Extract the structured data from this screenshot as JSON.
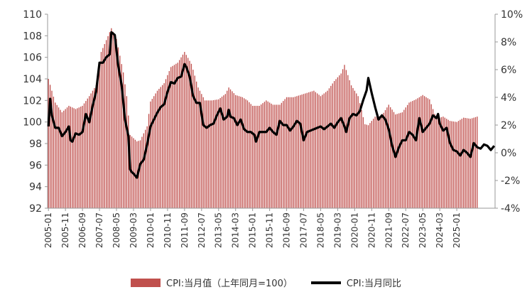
{
  "colors": {
    "bar": "#c0504d",
    "line": "#000000",
    "axis": "#999999"
  },
  "chart_data": {
    "type": "bar",
    "title": "",
    "xlabel": "",
    "ylabel": "",
    "ylim": [
      92,
      110
    ],
    "y2lim": [
      -4,
      10
    ],
    "yticks": [
      92,
      94,
      96,
      98,
      100,
      102,
      104,
      106,
      108,
      110
    ],
    "y2ticks": [
      "-4%",
      "-2%",
      "0%",
      "2%",
      "4%",
      "6%",
      "8%",
      "10%"
    ],
    "y2tick_values": [
      -4,
      -2,
      0,
      2,
      4,
      6,
      8,
      10
    ],
    "x_tick_labels": [
      "2005-01",
      "2005-11",
      "2006-09",
      "2007-07",
      "2008-05",
      "2009-03",
      "2010-01",
      "2010-11",
      "2011-09",
      "2012-07",
      "2013-05",
      "2014-03",
      "2015-01",
      "2015-11",
      "2016-09",
      "2017-07",
      "2018-05",
      "2019-03",
      "2020-01",
      "2020-11",
      "2021-09",
      "2022-07",
      "2023-05",
      "2024-03",
      "2025-01"
    ],
    "legend_position": "bottom",
    "grid": false,
    "series": [
      {
        "name": "CPI:当月值（上年同月=100）",
        "kind": "bar",
        "axis": "left",
        "anchors": [
          [
            0,
            104.0
          ],
          [
            4,
            101.8
          ],
          [
            8,
            100.9
          ],
          [
            12,
            101.5
          ],
          [
            16,
            101.2
          ],
          [
            20,
            101.5
          ],
          [
            24,
            102.4
          ],
          [
            28,
            103.4
          ],
          [
            31,
            106.5
          ],
          [
            37,
            108.7
          ],
          [
            40,
            107.7
          ],
          [
            44,
            104.6
          ],
          [
            46,
            102.4
          ],
          [
            48,
            98.8
          ],
          [
            52,
            98.2
          ],
          [
            54,
            98.3
          ],
          [
            58,
            99.6
          ],
          [
            60,
            101.9
          ],
          [
            64,
            102.9
          ],
          [
            68,
            103.6
          ],
          [
            72,
            105.1
          ],
          [
            76,
            105.5
          ],
          [
            80,
            106.5
          ],
          [
            84,
            105.4
          ],
          [
            88,
            103.2
          ],
          [
            92,
            102.0
          ],
          [
            94,
            102.0
          ],
          [
            96,
            102.0
          ],
          [
            100,
            102.1
          ],
          [
            104,
            102.6
          ],
          [
            106,
            103.2
          ],
          [
            110,
            102.5
          ],
          [
            114,
            102.3
          ],
          [
            117,
            102.0
          ],
          [
            120,
            101.5
          ],
          [
            124,
            101.5
          ],
          [
            128,
            102.0
          ],
          [
            132,
            101.6
          ],
          [
            136,
            101.6
          ],
          [
            140,
            102.3
          ],
          [
            144,
            102.3
          ],
          [
            148,
            102.5
          ],
          [
            152,
            102.7
          ],
          [
            156,
            102.9
          ],
          [
            160,
            102.4
          ],
          [
            164,
            102.9
          ],
          [
            168,
            103.8
          ],
          [
            172,
            104.5
          ],
          [
            174,
            105.3
          ],
          [
            178,
            103.4
          ],
          [
            182,
            102.4
          ],
          [
            186,
            99.8
          ],
          [
            188,
            99.7
          ],
          [
            192,
            100.5
          ],
          [
            196,
            100.6
          ],
          [
            200,
            101.6
          ],
          [
            204,
            100.7
          ],
          [
            208,
            100.9
          ],
          [
            212,
            101.8
          ],
          [
            216,
            102.1
          ],
          [
            220,
            102.5
          ],
          [
            224,
            102.1
          ],
          [
            228,
            100.3
          ],
          [
            232,
            100.5
          ],
          [
            236,
            100.1
          ],
          [
            240,
            100.0
          ],
          [
            244,
            100.4
          ],
          [
            248,
            100.3
          ],
          [
            252,
            100.5
          ]
        ]
      },
      {
        "name": "CPI:当月同比",
        "kind": "line",
        "axis": "right",
        "anchors": [
          [
            0,
            1.9
          ],
          [
            1,
            3.9
          ],
          [
            2,
            2.7
          ],
          [
            4,
            1.8
          ],
          [
            6,
            1.8
          ],
          [
            8,
            1.2
          ],
          [
            10,
            1.5
          ],
          [
            12,
            1.9
          ],
          [
            13,
            0.9
          ],
          [
            14,
            0.8
          ],
          [
            16,
            1.4
          ],
          [
            18,
            1.3
          ],
          [
            20,
            1.5
          ],
          [
            22,
            2.8
          ],
          [
            24,
            2.2
          ],
          [
            26,
            3.4
          ],
          [
            28,
            4.4
          ],
          [
            30,
            6.5
          ],
          [
            32,
            6.5
          ],
          [
            34,
            6.9
          ],
          [
            36,
            7.1
          ],
          [
            37,
            8.7
          ],
          [
            39,
            8.5
          ],
          [
            41,
            6.3
          ],
          [
            43,
            4.9
          ],
          [
            45,
            2.4
          ],
          [
            47,
            1.2
          ],
          [
            48,
            -1.2
          ],
          [
            49,
            -1.4
          ],
          [
            50,
            -1.5
          ],
          [
            52,
            -1.8
          ],
          [
            54,
            -0.8
          ],
          [
            56,
            -0.5
          ],
          [
            58,
            0.6
          ],
          [
            60,
            1.9
          ],
          [
            62,
            2.4
          ],
          [
            64,
            2.9
          ],
          [
            66,
            3.3
          ],
          [
            68,
            3.5
          ],
          [
            70,
            4.4
          ],
          [
            72,
            5.1
          ],
          [
            74,
            5.0
          ],
          [
            76,
            5.4
          ],
          [
            78,
            5.5
          ],
          [
            80,
            6.4
          ],
          [
            81,
            6.2
          ],
          [
            83,
            5.5
          ],
          [
            85,
            4.1
          ],
          [
            87,
            3.6
          ],
          [
            89,
            3.6
          ],
          [
            91,
            2.0
          ],
          [
            93,
            1.8
          ],
          [
            95,
            2.0
          ],
          [
            97,
            2.1
          ],
          [
            99,
            2.7
          ],
          [
            101,
            3.2
          ],
          [
            103,
            2.4
          ],
          [
            105,
            2.6
          ],
          [
            106,
            3.1
          ],
          [
            107,
            2.6
          ],
          [
            109,
            2.5
          ],
          [
            111,
            2.0
          ],
          [
            113,
            2.4
          ],
          [
            115,
            1.7
          ],
          [
            117,
            1.5
          ],
          [
            119,
            1.5
          ],
          [
            121,
            1.3
          ],
          [
            122,
            0.8
          ],
          [
            124,
            1.5
          ],
          [
            126,
            1.5
          ],
          [
            128,
            1.5
          ],
          [
            130,
            1.8
          ],
          [
            132,
            1.5
          ],
          [
            134,
            1.3
          ],
          [
            136,
            2.3
          ],
          [
            138,
            2.0
          ],
          [
            140,
            2.0
          ],
          [
            142,
            1.6
          ],
          [
            144,
            1.9
          ],
          [
            146,
            2.3
          ],
          [
            148,
            2.1
          ],
          [
            150,
            0.9
          ],
          [
            152,
            1.5
          ],
          [
            154,
            1.6
          ],
          [
            156,
            1.7
          ],
          [
            158,
            1.8
          ],
          [
            160,
            1.9
          ],
          [
            162,
            1.7
          ],
          [
            164,
            1.9
          ],
          [
            166,
            2.1
          ],
          [
            168,
            1.8
          ],
          [
            170,
            2.2
          ],
          [
            172,
            2.5
          ],
          [
            174,
            1.9
          ],
          [
            175,
            1.5
          ],
          [
            177,
            2.5
          ],
          [
            179,
            2.8
          ],
          [
            181,
            2.7
          ],
          [
            183,
            3.0
          ],
          [
            185,
            3.8
          ],
          [
            187,
            4.5
          ],
          [
            188,
            5.4
          ],
          [
            190,
            4.3
          ],
          [
            192,
            3.3
          ],
          [
            194,
            2.4
          ],
          [
            196,
            2.7
          ],
          [
            198,
            2.4
          ],
          [
            200,
            1.7
          ],
          [
            202,
            0.5
          ],
          [
            204,
            -0.3
          ],
          [
            206,
            0.4
          ],
          [
            208,
            0.9
          ],
          [
            210,
            0.9
          ],
          [
            212,
            1.5
          ],
          [
            214,
            1.3
          ],
          [
            216,
            0.9
          ],
          [
            218,
            2.5
          ],
          [
            220,
            1.5
          ],
          [
            222,
            1.8
          ],
          [
            224,
            2.1
          ],
          [
            226,
            2.7
          ],
          [
            228,
            2.5
          ],
          [
            229,
            2.8
          ],
          [
            230,
            2.1
          ],
          [
            232,
            1.6
          ],
          [
            234,
            1.8
          ],
          [
            236,
            0.7
          ],
          [
            238,
            0.2
          ],
          [
            240,
            0.1
          ],
          [
            242,
            -0.2
          ],
          [
            244,
            0.2
          ],
          [
            246,
            0.0
          ],
          [
            248,
            -0.3
          ],
          [
            250,
            0.7
          ],
          [
            252,
            0.4
          ],
          [
            254,
            0.3
          ],
          [
            256,
            0.6
          ],
          [
            258,
            0.5
          ],
          [
            260,
            0.2
          ],
          [
            262,
            0.5
          ]
        ]
      }
    ]
  }
}
